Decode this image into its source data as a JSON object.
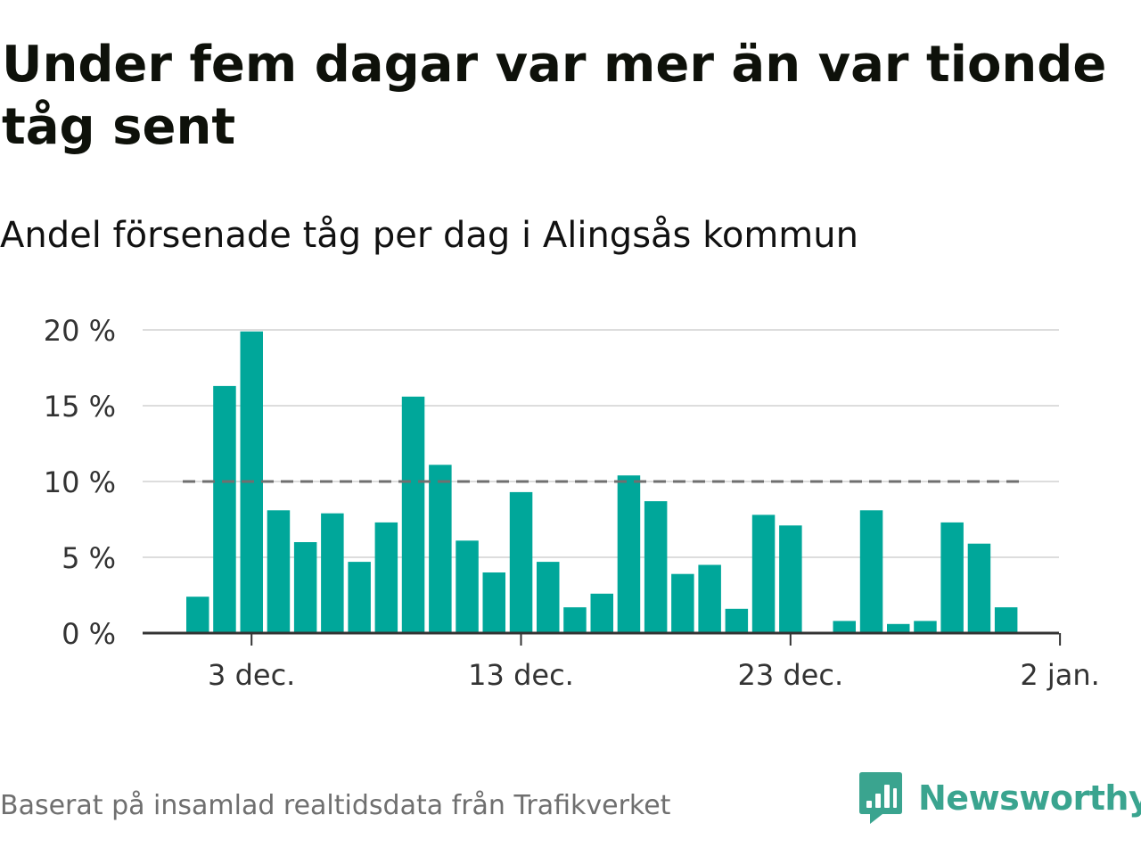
{
  "header": {
    "title": "Under fem dagar var mer än var tionde tåg sent",
    "subtitle": "Andel försenade tåg per dag i Alingsås kommun"
  },
  "chart_data": {
    "type": "bar",
    "x": [
      "2023-12-01",
      "2023-12-02",
      "2023-12-03",
      "2023-12-04",
      "2023-12-05",
      "2023-12-06",
      "2023-12-07",
      "2023-12-08",
      "2023-12-09",
      "2023-12-10",
      "2023-12-11",
      "2023-12-12",
      "2023-12-13",
      "2023-12-14",
      "2023-12-15",
      "2023-12-16",
      "2023-12-17",
      "2023-12-18",
      "2023-12-19",
      "2023-12-20",
      "2023-12-21",
      "2023-12-22",
      "2023-12-23",
      "2023-12-24",
      "2023-12-25",
      "2023-12-26",
      "2023-12-27",
      "2023-12-28",
      "2023-12-29",
      "2023-12-30",
      "2023-12-31"
    ],
    "values": [
      2.4,
      16.3,
      19.9,
      8.1,
      6.0,
      7.9,
      4.7,
      7.3,
      15.6,
      11.1,
      6.1,
      4.0,
      9.3,
      4.7,
      1.7,
      2.6,
      10.4,
      8.7,
      3.9,
      4.5,
      1.6,
      7.8,
      7.1,
      0,
      0.8,
      8.1,
      0.6,
      0.8,
      7.3,
      5.9,
      1.7
    ],
    "xticks": [
      "3 dec.",
      "13 dec.",
      "23 dec.",
      "2 jan."
    ],
    "yticks": [
      "0 %",
      "5 %",
      "10 %",
      "15 %",
      "20 %"
    ],
    "ylim": [
      0,
      20
    ],
    "reference_line": 10,
    "grid": true,
    "colors": {
      "bar": "#00a79a",
      "reference_line": "#6f6f6f",
      "grid": "#dddddd",
      "axis": "#333333"
    }
  },
  "footer": {
    "source": "Baserat på insamlad realtidsdata från Trafikverket",
    "brand": "Newsworthy",
    "brand_icon": "chart-speech-bubble-icon",
    "brand_color": "#3aa48f"
  }
}
